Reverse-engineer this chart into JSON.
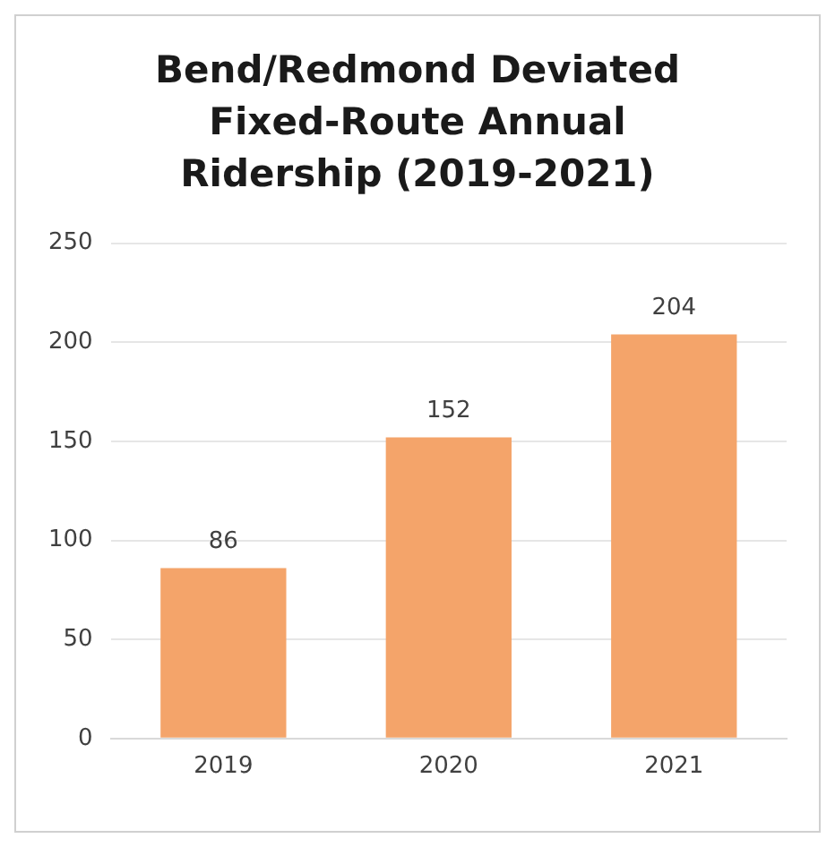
{
  "chart_data": {
    "type": "bar",
    "title": "Bend/Redmond Deviated Fixed-Route Annual Ridership (2019-2021)",
    "categories": [
      "2019",
      "2020",
      "2021"
    ],
    "values": [
      86,
      152,
      204
    ],
    "color": "#f4a46a",
    "ylim": [
      0,
      250
    ],
    "yticks": [
      0,
      50,
      100,
      150,
      200,
      250
    ],
    "grid": "y",
    "data_labels": true,
    "legend": false
  }
}
